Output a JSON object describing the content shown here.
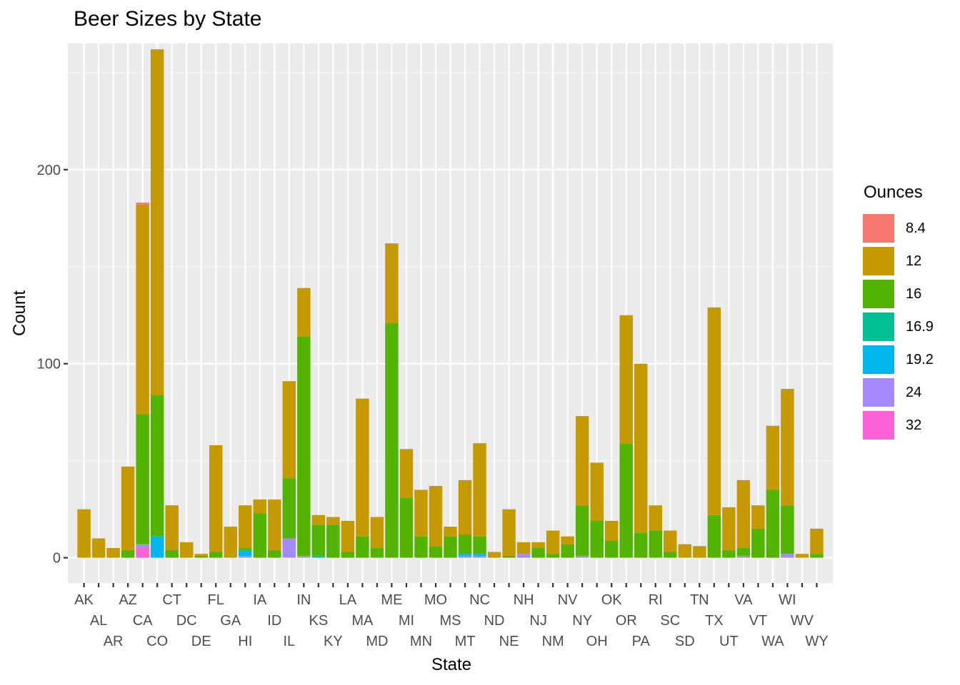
{
  "chart_data": {
    "type": "bar",
    "stacked": true,
    "title": "Beer Sizes by State",
    "xlabel": "State",
    "ylabel": "Count",
    "ylim": [
      -13,
      265
    ],
    "yticks": [
      0,
      100,
      200
    ],
    "grid": true,
    "legend": {
      "title": "Ounces",
      "position": "right"
    },
    "categories": [
      "AK",
      "AL",
      "AR",
      "AZ",
      "CA",
      "CO",
      "CT",
      "DC",
      "DE",
      "FL",
      "GA",
      "HI",
      "IA",
      "ID",
      "IL",
      "IN",
      "KS",
      "KY",
      "LA",
      "MA",
      "MD",
      "ME",
      "MI",
      "MN",
      "MO",
      "MS",
      "MT",
      "NC",
      "ND",
      "NE",
      "NH",
      "NJ",
      "NM",
      "NV",
      "NY",
      "OH",
      "OK",
      "OR",
      "PA",
      "RI",
      "SC",
      "SD",
      "TN",
      "TX",
      "UT",
      "VA",
      "VT",
      "WA",
      "WI",
      "WV",
      "WY"
    ],
    "series": [
      {
        "name": "8.4",
        "color": "#F8766D",
        "values": [
          0,
          0,
          0,
          0,
          1,
          0,
          0,
          0,
          0,
          0,
          0,
          0,
          0,
          0,
          0,
          0,
          0,
          0,
          0,
          0,
          0,
          0,
          0,
          0,
          0,
          0,
          0,
          0,
          0,
          0,
          0,
          0,
          0,
          0,
          0,
          0,
          0,
          0,
          0,
          0,
          0,
          0,
          0,
          0,
          0,
          0,
          0,
          0,
          0,
          0,
          0
        ]
      },
      {
        "name": "12",
        "color": "#C49A00",
        "values": [
          25,
          10,
          5,
          43,
          108,
          178,
          23,
          8,
          1,
          55,
          16,
          22,
          7,
          26,
          50,
          25,
          5,
          4,
          16,
          71,
          16,
          41,
          25,
          24,
          31,
          5,
          28,
          48,
          3,
          24,
          6,
          3,
          12,
          4,
          46,
          30,
          10,
          66,
          87,
          13,
          11,
          7,
          6,
          107,
          22,
          35,
          12,
          33,
          60,
          2,
          13
        ]
      },
      {
        "name": "16",
        "color": "#53B400",
        "values": [
          0,
          0,
          0,
          4,
          67,
          73,
          4,
          0,
          1,
          3,
          0,
          1,
          23,
          4,
          31,
          113,
          16,
          17,
          3,
          11,
          5,
          121,
          31,
          11,
          6,
          11,
          10,
          9,
          0,
          1,
          0,
          5,
          2,
          7,
          26,
          19,
          9,
          59,
          13,
          14,
          3,
          0,
          0,
          22,
          4,
          4,
          15,
          35,
          25,
          0,
          2
        ]
      },
      {
        "name": "16.9",
        "color": "#00C094",
        "values": [
          0,
          0,
          0,
          0,
          0,
          0,
          0,
          0,
          0,
          0,
          0,
          0,
          0,
          0,
          0,
          0,
          0,
          0,
          0,
          0,
          0,
          0,
          0,
          0,
          0,
          0,
          0,
          0,
          0,
          0,
          0,
          0,
          0,
          0,
          0,
          0,
          0,
          0,
          0,
          0,
          0,
          0,
          0,
          0,
          0,
          0,
          0,
          0,
          0,
          0,
          0
        ]
      },
      {
        "name": "19.2",
        "color": "#00B6EB",
        "values": [
          0,
          0,
          0,
          0,
          0,
          11,
          0,
          0,
          0,
          0,
          0,
          3,
          0,
          0,
          0,
          0,
          1,
          0,
          0,
          0,
          0,
          0,
          0,
          0,
          0,
          0,
          1,
          1,
          0,
          0,
          0,
          0,
          0,
          0,
          0,
          0,
          0,
          0,
          0,
          0,
          0,
          0,
          0,
          0,
          0,
          0,
          0,
          0,
          0,
          0,
          0
        ]
      },
      {
        "name": "24",
        "color": "#A58AFF",
        "values": [
          0,
          0,
          0,
          0,
          2,
          0,
          0,
          0,
          0,
          0,
          0,
          1,
          0,
          0,
          10,
          1,
          0,
          0,
          0,
          0,
          0,
          0,
          0,
          0,
          0,
          0,
          1,
          1,
          0,
          0,
          2,
          0,
          0,
          0,
          1,
          0,
          0,
          0,
          0,
          0,
          0,
          0,
          0,
          0,
          0,
          1,
          0,
          0,
          2,
          0,
          0
        ]
      },
      {
        "name": "32",
        "color": "#FB61D7",
        "values": [
          0,
          0,
          0,
          0,
          5,
          0,
          0,
          0,
          0,
          0,
          0,
          0,
          0,
          0,
          0,
          0,
          0,
          0,
          0,
          0,
          0,
          0,
          0,
          0,
          0,
          0,
          0,
          0,
          0,
          0,
          0,
          0,
          0,
          0,
          0,
          0,
          0,
          0,
          0,
          0,
          0,
          0,
          0,
          0,
          0,
          0,
          0,
          0,
          0,
          0,
          0
        ]
      }
    ]
  }
}
